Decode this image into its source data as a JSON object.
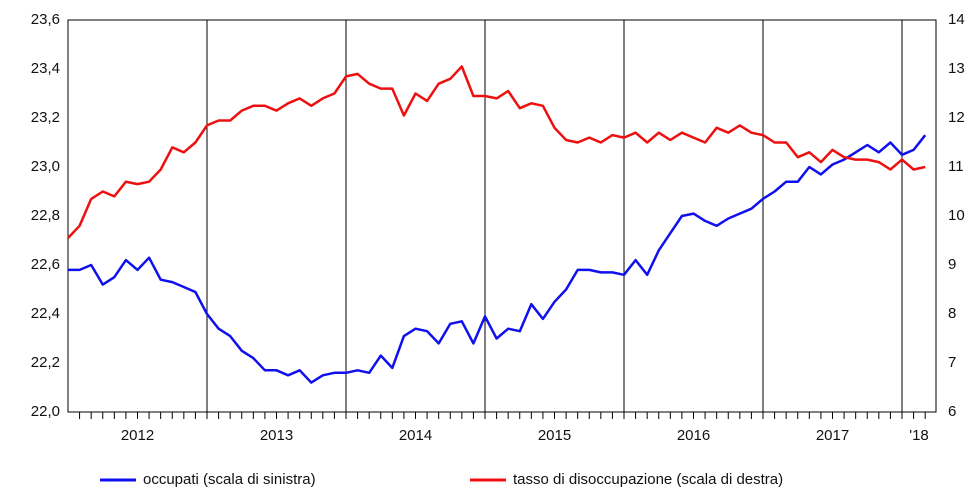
{
  "chart_data": {
    "type": "line",
    "year_labels": [
      "2012",
      "2013",
      "2014",
      "2015",
      "2016",
      "2017",
      "'18"
    ],
    "series": [
      {
        "name": "occupati (scala di sinistra)",
        "color": "#1010ee",
        "axis": "y",
        "values": [
          22.58,
          22.58,
          22.6,
          22.52,
          22.55,
          22.62,
          22.58,
          22.63,
          22.54,
          22.53,
          22.51,
          22.49,
          22.4,
          22.34,
          22.31,
          22.25,
          22.22,
          22.17,
          22.17,
          22.15,
          22.17,
          22.12,
          22.15,
          22.16,
          22.16,
          22.17,
          22.16,
          22.23,
          22.18,
          22.31,
          22.34,
          22.33,
          22.28,
          22.36,
          22.37,
          22.28,
          22.39,
          22.3,
          22.34,
          22.33,
          22.44,
          22.38,
          22.45,
          22.5,
          22.58,
          22.58,
          22.57,
          22.57,
          22.56,
          22.62,
          22.56,
          22.66,
          22.73,
          22.8,
          22.81,
          22.78,
          22.76,
          22.79,
          22.81,
          22.83,
          22.87,
          22.9,
          22.94,
          22.94,
          23.0,
          22.97,
          23.01,
          23.03,
          23.06,
          23.09,
          23.06,
          23.1,
          23.05,
          23.07,
          23.13
        ]
      },
      {
        "name": "tasso di disoccupazione (scala di destra)",
        "color": "#ee1010",
        "axis": "y2",
        "values": [
          9.55,
          9.8,
          10.35,
          10.5,
          10.4,
          10.7,
          10.65,
          10.7,
          10.95,
          11.4,
          11.3,
          11.5,
          11.85,
          11.95,
          11.95,
          12.15,
          12.25,
          12.25,
          12.15,
          12.3,
          12.4,
          12.25,
          12.4,
          12.5,
          12.85,
          12.9,
          12.7,
          12.6,
          12.6,
          12.05,
          12.5,
          12.35,
          12.7,
          12.8,
          13.05,
          12.45,
          12.45,
          12.4,
          12.55,
          12.2,
          12.3,
          12.25,
          11.8,
          11.55,
          11.5,
          11.6,
          11.5,
          11.65,
          11.6,
          11.7,
          11.5,
          11.7,
          11.55,
          11.7,
          11.6,
          11.5,
          11.8,
          11.7,
          11.85,
          11.7,
          11.65,
          11.5,
          11.5,
          11.2,
          11.3,
          11.1,
          11.35,
          11.2,
          11.15,
          11.15,
          11.1,
          10.95,
          11.15,
          10.95,
          11.0
        ]
      }
    ],
    "ylim": [
      22.0,
      23.6
    ],
    "yticks": [
      {
        "value": 22.0,
        "label": "22,0"
      },
      {
        "value": 22.2,
        "label": "22,2"
      },
      {
        "value": 22.4,
        "label": "22,4"
      },
      {
        "value": 22.6,
        "label": "22,6"
      },
      {
        "value": 22.8,
        "label": "22,8"
      },
      {
        "value": 23.0,
        "label": "23,0"
      },
      {
        "value": 23.2,
        "label": "23,2"
      },
      {
        "value": 23.4,
        "label": "23,4"
      },
      {
        "value": 23.6,
        "label": "23,6"
      }
    ],
    "y2lim": [
      6,
      14
    ],
    "y2ticks": [
      6,
      7,
      8,
      9,
      10,
      11,
      12,
      13,
      14
    ],
    "legend": "bottom"
  }
}
